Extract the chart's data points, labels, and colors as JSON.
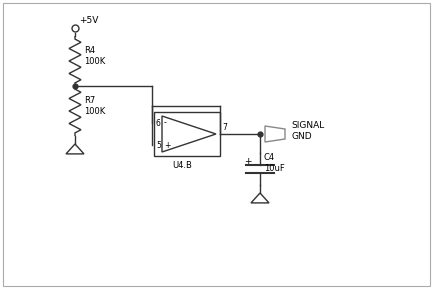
{
  "background_color": "#ffffff",
  "border_color": "#aaaaaa",
  "line_color": "#333333",
  "text_color": "#000000",
  "fig_width": 4.33,
  "fig_height": 2.89,
  "dpi": 100,
  "vcc_label": "+5V",
  "r4_label": "R4\n100K",
  "r7_label": "R7\n100K",
  "opamp_label": "U4.B",
  "cap_label": "C4\n10uF",
  "signal_label": "SIGNAL\nGND",
  "pin6_label": "6",
  "pin5_label": "5",
  "pin7_label": "7",
  "minus_label": "-",
  "plus_label": "+"
}
